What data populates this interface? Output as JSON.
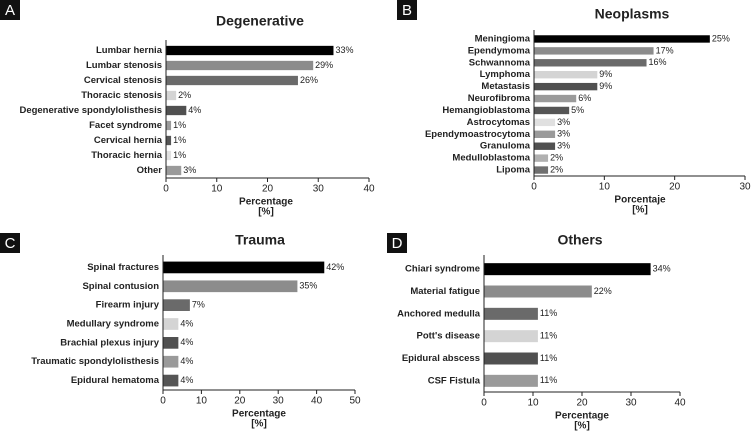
{
  "chart_data": [
    {
      "type": "bar",
      "orientation": "horizontal",
      "panel_label": "A",
      "title": "Degenerative",
      "categories": [
        "Lumbar hernia",
        "Lumbar stenosis",
        "Cervical stenosis",
        "Thoracic stenosis",
        "Degenerative spondylolisthesis",
        "Facet syndrome",
        "Cervical hernia",
        "Thoracic hernia",
        "Other"
      ],
      "values": [
        33,
        29,
        26,
        2,
        4,
        1,
        1,
        1,
        3
      ],
      "value_labels": [
        "33%",
        "29%",
        "26%",
        "2%",
        "4%",
        "1%",
        "1%",
        "1%",
        "3%"
      ],
      "colors": [
        "#000000",
        "#8c8c8c",
        "#6a6a6a",
        "#d4d4d4",
        "#505050",
        "#9a9a9a",
        "#555555",
        "#e0e0e0",
        "#9a9a9a"
      ],
      "xlim": [
        0,
        40
      ],
      "xticks": [
        0,
        10,
        20,
        30,
        40
      ],
      "xlabel": "Percentage",
      "xlabel_unit": "[%]"
    },
    {
      "type": "bar",
      "orientation": "horizontal",
      "panel_label": "B",
      "title": "Neoplasms",
      "categories": [
        "Meningioma",
        "Ependymoma",
        "Schwannoma",
        "Lymphoma",
        "Metastasis",
        "Neurofibroma",
        "Hemangioblastoma",
        "Astrocytomas",
        "Ependymoastrocytoma",
        "Granuloma",
        "Medulloblastoma",
        "Lipoma"
      ],
      "values": [
        25,
        17,
        16,
        9,
        9,
        6,
        5,
        3,
        3,
        3,
        2,
        2
      ],
      "value_labels": [
        "25%",
        "17%",
        "16%",
        "9%",
        "9%",
        "6%",
        "5%",
        "3%",
        "3%",
        "3%",
        "2%",
        "2%"
      ],
      "colors": [
        "#000000",
        "#8c8c8c",
        "#6a6a6a",
        "#d4d4d4",
        "#505050",
        "#9a9a9a",
        "#555555",
        "#e0e0e0",
        "#9a9a9a",
        "#505050",
        "#b0b0b0",
        "#707070"
      ],
      "xlim": [
        0,
        30
      ],
      "xticks": [
        0,
        10,
        20,
        30
      ],
      "xlabel": "Porcentaje",
      "xlabel_unit": "[%]"
    },
    {
      "type": "bar",
      "orientation": "horizontal",
      "panel_label": "C",
      "title": "Trauma",
      "categories": [
        "Spinal fractures",
        "Spinal contusion",
        "Firearm injury",
        "Medullary syndrome",
        "Brachial plexus injury",
        "Traumatic spondylolisthesis",
        "Epidural hematoma"
      ],
      "values": [
        42,
        35,
        7,
        4,
        4,
        4,
        4
      ],
      "value_labels": [
        "42%",
        "35%",
        "7%",
        "4%",
        "4%",
        "4%",
        "4%"
      ],
      "colors": [
        "#000000",
        "#8c8c8c",
        "#6a6a6a",
        "#d4d4d4",
        "#505050",
        "#9a9a9a",
        "#555555"
      ],
      "xlim": [
        0,
        50
      ],
      "xticks": [
        0,
        10,
        20,
        30,
        40,
        50
      ],
      "xlabel": "Percentage",
      "xlabel_unit": "[%]"
    },
    {
      "type": "bar",
      "orientation": "horizontal",
      "panel_label": "D",
      "title": "Others",
      "categories": [
        "Chiari syndrome",
        "Material fatigue",
        "Anchored medulla",
        "Pott's disease",
        "Epidural abscess",
        "CSF Fistula"
      ],
      "values": [
        34,
        22,
        11,
        11,
        11,
        11
      ],
      "value_labels": [
        "34%",
        "22%",
        "11%",
        "11%",
        "11%",
        "11%"
      ],
      "colors": [
        "#000000",
        "#8c8c8c",
        "#6a6a6a",
        "#d4d4d4",
        "#505050",
        "#9a9a9a"
      ],
      "xlim": [
        0,
        40
      ],
      "xticks": [
        0,
        10,
        20,
        30,
        40
      ],
      "xlabel": "Percentage",
      "xlabel_unit": "[%]"
    }
  ]
}
